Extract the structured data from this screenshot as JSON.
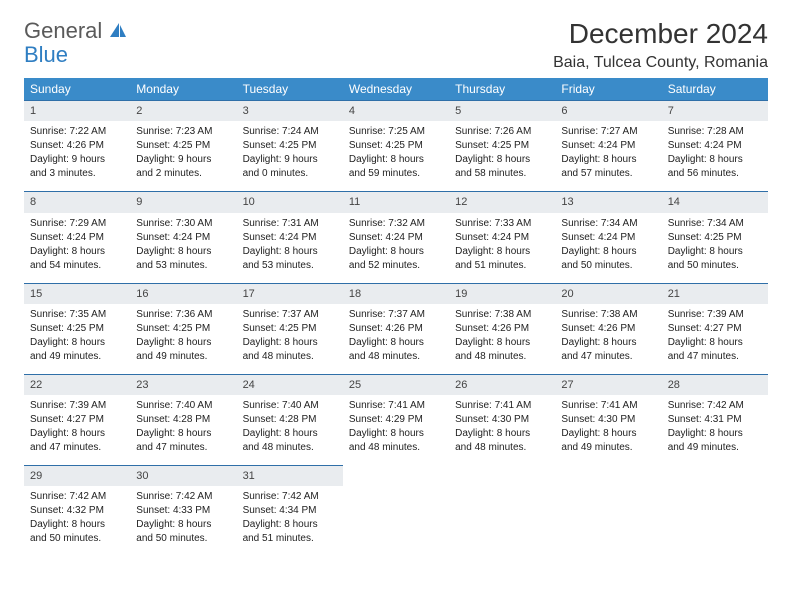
{
  "brand": {
    "general": "General",
    "blue": "Blue",
    "sail_color": "#2f7ec2"
  },
  "title": "December 2024",
  "location": "Baia, Tulcea County, Romania",
  "colors": {
    "header_bg": "#3a8bc9",
    "header_text": "#ffffff",
    "daynum_bg": "#e9ecef",
    "row_border": "#2f6fa8",
    "text": "#222222",
    "background": "#ffffff"
  },
  "weekdays": [
    "Sunday",
    "Monday",
    "Tuesday",
    "Wednesday",
    "Thursday",
    "Friday",
    "Saturday"
  ],
  "weeks": [
    [
      {
        "n": "1",
        "sr": "Sunrise: 7:22 AM",
        "ss": "Sunset: 4:26 PM",
        "d1": "Daylight: 9 hours",
        "d2": "and 3 minutes."
      },
      {
        "n": "2",
        "sr": "Sunrise: 7:23 AM",
        "ss": "Sunset: 4:25 PM",
        "d1": "Daylight: 9 hours",
        "d2": "and 2 minutes."
      },
      {
        "n": "3",
        "sr": "Sunrise: 7:24 AM",
        "ss": "Sunset: 4:25 PM",
        "d1": "Daylight: 9 hours",
        "d2": "and 0 minutes."
      },
      {
        "n": "4",
        "sr": "Sunrise: 7:25 AM",
        "ss": "Sunset: 4:25 PM",
        "d1": "Daylight: 8 hours",
        "d2": "and 59 minutes."
      },
      {
        "n": "5",
        "sr": "Sunrise: 7:26 AM",
        "ss": "Sunset: 4:25 PM",
        "d1": "Daylight: 8 hours",
        "d2": "and 58 minutes."
      },
      {
        "n": "6",
        "sr": "Sunrise: 7:27 AM",
        "ss": "Sunset: 4:24 PM",
        "d1": "Daylight: 8 hours",
        "d2": "and 57 minutes."
      },
      {
        "n": "7",
        "sr": "Sunrise: 7:28 AM",
        "ss": "Sunset: 4:24 PM",
        "d1": "Daylight: 8 hours",
        "d2": "and 56 minutes."
      }
    ],
    [
      {
        "n": "8",
        "sr": "Sunrise: 7:29 AM",
        "ss": "Sunset: 4:24 PM",
        "d1": "Daylight: 8 hours",
        "d2": "and 54 minutes."
      },
      {
        "n": "9",
        "sr": "Sunrise: 7:30 AM",
        "ss": "Sunset: 4:24 PM",
        "d1": "Daylight: 8 hours",
        "d2": "and 53 minutes."
      },
      {
        "n": "10",
        "sr": "Sunrise: 7:31 AM",
        "ss": "Sunset: 4:24 PM",
        "d1": "Daylight: 8 hours",
        "d2": "and 53 minutes."
      },
      {
        "n": "11",
        "sr": "Sunrise: 7:32 AM",
        "ss": "Sunset: 4:24 PM",
        "d1": "Daylight: 8 hours",
        "d2": "and 52 minutes."
      },
      {
        "n": "12",
        "sr": "Sunrise: 7:33 AM",
        "ss": "Sunset: 4:24 PM",
        "d1": "Daylight: 8 hours",
        "d2": "and 51 minutes."
      },
      {
        "n": "13",
        "sr": "Sunrise: 7:34 AM",
        "ss": "Sunset: 4:24 PM",
        "d1": "Daylight: 8 hours",
        "d2": "and 50 minutes."
      },
      {
        "n": "14",
        "sr": "Sunrise: 7:34 AM",
        "ss": "Sunset: 4:25 PM",
        "d1": "Daylight: 8 hours",
        "d2": "and 50 minutes."
      }
    ],
    [
      {
        "n": "15",
        "sr": "Sunrise: 7:35 AM",
        "ss": "Sunset: 4:25 PM",
        "d1": "Daylight: 8 hours",
        "d2": "and 49 minutes."
      },
      {
        "n": "16",
        "sr": "Sunrise: 7:36 AM",
        "ss": "Sunset: 4:25 PM",
        "d1": "Daylight: 8 hours",
        "d2": "and 49 minutes."
      },
      {
        "n": "17",
        "sr": "Sunrise: 7:37 AM",
        "ss": "Sunset: 4:25 PM",
        "d1": "Daylight: 8 hours",
        "d2": "and 48 minutes."
      },
      {
        "n": "18",
        "sr": "Sunrise: 7:37 AM",
        "ss": "Sunset: 4:26 PM",
        "d1": "Daylight: 8 hours",
        "d2": "and 48 minutes."
      },
      {
        "n": "19",
        "sr": "Sunrise: 7:38 AM",
        "ss": "Sunset: 4:26 PM",
        "d1": "Daylight: 8 hours",
        "d2": "and 48 minutes."
      },
      {
        "n": "20",
        "sr": "Sunrise: 7:38 AM",
        "ss": "Sunset: 4:26 PM",
        "d1": "Daylight: 8 hours",
        "d2": "and 47 minutes."
      },
      {
        "n": "21",
        "sr": "Sunrise: 7:39 AM",
        "ss": "Sunset: 4:27 PM",
        "d1": "Daylight: 8 hours",
        "d2": "and 47 minutes."
      }
    ],
    [
      {
        "n": "22",
        "sr": "Sunrise: 7:39 AM",
        "ss": "Sunset: 4:27 PM",
        "d1": "Daylight: 8 hours",
        "d2": "and 47 minutes."
      },
      {
        "n": "23",
        "sr": "Sunrise: 7:40 AM",
        "ss": "Sunset: 4:28 PM",
        "d1": "Daylight: 8 hours",
        "d2": "and 47 minutes."
      },
      {
        "n": "24",
        "sr": "Sunrise: 7:40 AM",
        "ss": "Sunset: 4:28 PM",
        "d1": "Daylight: 8 hours",
        "d2": "and 48 minutes."
      },
      {
        "n": "25",
        "sr": "Sunrise: 7:41 AM",
        "ss": "Sunset: 4:29 PM",
        "d1": "Daylight: 8 hours",
        "d2": "and 48 minutes."
      },
      {
        "n": "26",
        "sr": "Sunrise: 7:41 AM",
        "ss": "Sunset: 4:30 PM",
        "d1": "Daylight: 8 hours",
        "d2": "and 48 minutes."
      },
      {
        "n": "27",
        "sr": "Sunrise: 7:41 AM",
        "ss": "Sunset: 4:30 PM",
        "d1": "Daylight: 8 hours",
        "d2": "and 49 minutes."
      },
      {
        "n": "28",
        "sr": "Sunrise: 7:42 AM",
        "ss": "Sunset: 4:31 PM",
        "d1": "Daylight: 8 hours",
        "d2": "and 49 minutes."
      }
    ],
    [
      {
        "n": "29",
        "sr": "Sunrise: 7:42 AM",
        "ss": "Sunset: 4:32 PM",
        "d1": "Daylight: 8 hours",
        "d2": "and 50 minutes."
      },
      {
        "n": "30",
        "sr": "Sunrise: 7:42 AM",
        "ss": "Sunset: 4:33 PM",
        "d1": "Daylight: 8 hours",
        "d2": "and 50 minutes."
      },
      {
        "n": "31",
        "sr": "Sunrise: 7:42 AM",
        "ss": "Sunset: 4:34 PM",
        "d1": "Daylight: 8 hours",
        "d2": "and 51 minutes."
      },
      null,
      null,
      null,
      null
    ]
  ]
}
